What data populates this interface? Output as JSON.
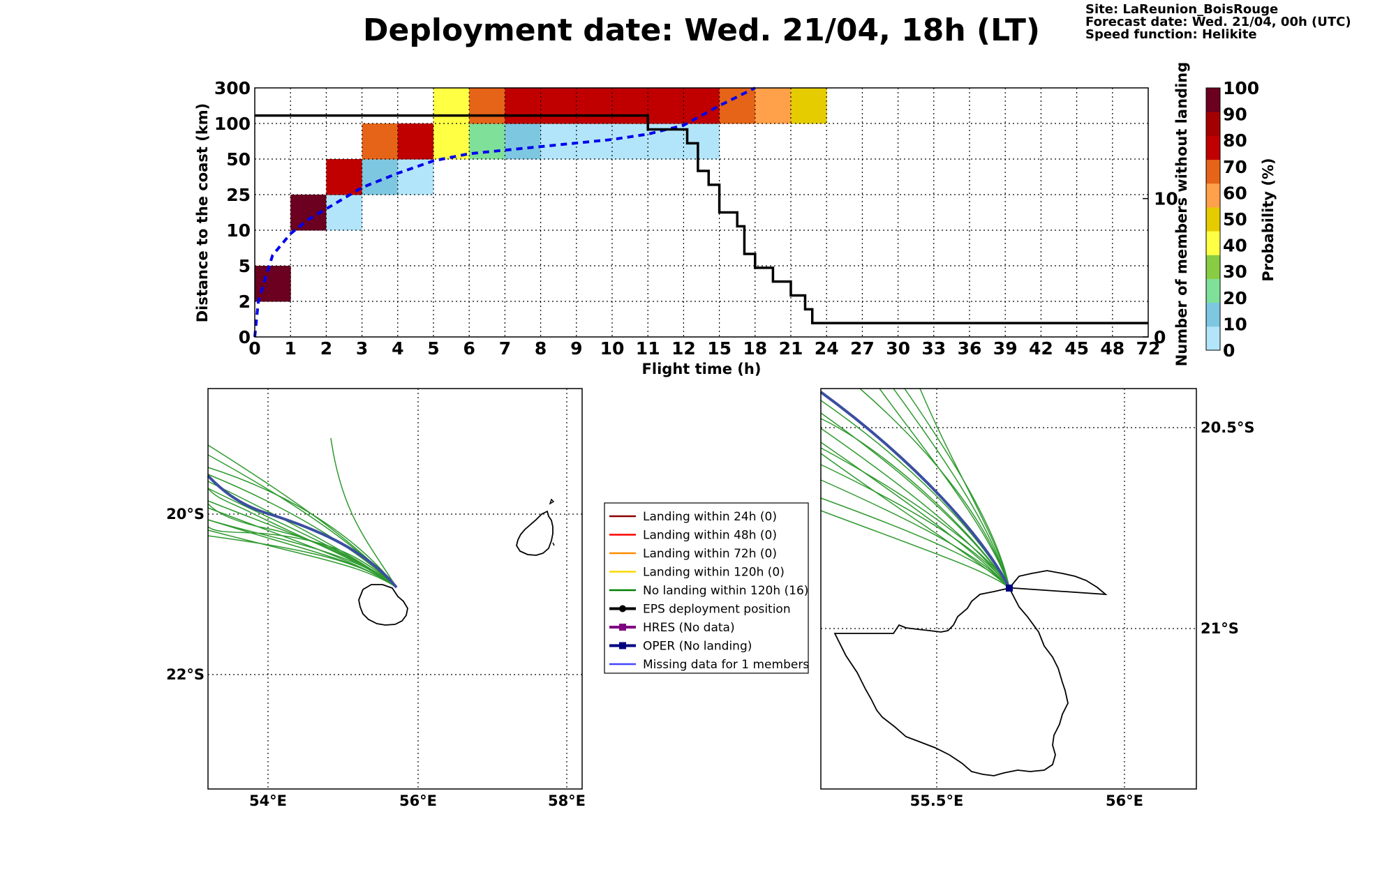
{
  "title": "Deployment date: Wed. 21/04, 18h (LT)",
  "meta": {
    "site": "Site: LaReunion_BoisRouge",
    "forecast": "Forecast date: Wed. 21/04, 00h (UTC)",
    "speed": "Speed function: Helikite"
  },
  "chart_data": [
    {
      "type": "heatmap",
      "xlabel": "Flight time (h)",
      "ylabel": "Distance to the coast (km)",
      "ylabel_right": "Number of members without landing",
      "colorbar_label": "Probability (%)",
      "x_ticks": [
        "0",
        "1",
        "2",
        "3",
        "4",
        "5",
        "6",
        "7",
        "8",
        "9",
        "10",
        "11",
        "12",
        "15",
        "18",
        "21",
        "24",
        "27",
        "30",
        "33",
        "36",
        "39",
        "42",
        "45",
        "48",
        "72"
      ],
      "y_ticks": [
        "0",
        "2",
        "5",
        "10",
        "25",
        "50",
        "100",
        "300"
      ],
      "right_ticks": [
        {
          "label": "0",
          "value": 0
        },
        {
          "label": "10",
          "value": 10
        }
      ],
      "right_ylim": [
        0,
        18
      ],
      "colorbar": {
        "ticks": [
          "0",
          "10",
          "20",
          "30",
          "40",
          "50",
          "60",
          "70",
          "80",
          "90",
          "100"
        ],
        "colors": [
          "#b3e5fa",
          "#7ec7e0",
          "#7fe09a",
          "#88cc44",
          "#ffff44",
          "#e5cc00",
          "#ffa04a",
          "#e56418",
          "#c00000",
          "#a50000",
          "#6b0020"
        ]
      },
      "cells": [
        {
          "x": 0,
          "y": 1,
          "p": 100,
          "color": "#6b0020"
        },
        {
          "x": 1,
          "y": 3,
          "p": 100,
          "color": "#6b0020"
        },
        {
          "x": 2,
          "y": 3,
          "p": 0,
          "color": "#b3e5fa"
        },
        {
          "x": 2,
          "y": 4,
          "p": 80,
          "color": "#c00000"
        },
        {
          "x": 3,
          "y": 4,
          "p": 10,
          "color": "#7ec7e0"
        },
        {
          "x": 4,
          "y": 4,
          "p": 0,
          "color": "#b3e5fa"
        },
        {
          "x": 3,
          "y": 5,
          "p": 70,
          "color": "#e56418"
        },
        {
          "x": 4,
          "y": 5,
          "p": 80,
          "color": "#c00000"
        },
        {
          "x": 5,
          "y": 5,
          "p": 40,
          "color": "#ffff44"
        },
        {
          "x": 6,
          "y": 5,
          "p": 20,
          "color": "#7fe09a"
        },
        {
          "x": 7,
          "y": 5,
          "p": 10,
          "color": "#7ec7e0"
        },
        {
          "x": 8,
          "y": 5,
          "p": 0,
          "color": "#b3e5fa"
        },
        {
          "x": 9,
          "y": 5,
          "p": 0,
          "color": "#b3e5fa"
        },
        {
          "x": 10,
          "y": 5,
          "p": 0,
          "color": "#b3e5fa"
        },
        {
          "x": 11,
          "y": 5,
          "p": 0,
          "color": "#b3e5fa"
        },
        {
          "x": 12,
          "y": 5,
          "p": 0,
          "color": "#b3e5fa"
        },
        {
          "x": 5,
          "y": 6,
          "p": 40,
          "color": "#ffff44"
        },
        {
          "x": 6,
          "y": 6,
          "p": 70,
          "color": "#e56418"
        },
        {
          "x": 7,
          "y": 6,
          "p": 80,
          "color": "#c00000"
        },
        {
          "x": 8,
          "y": 6,
          "p": 80,
          "color": "#c00000"
        },
        {
          "x": 9,
          "y": 6,
          "p": 80,
          "color": "#c00000"
        },
        {
          "x": 10,
          "y": 6,
          "p": 80,
          "color": "#c00000"
        },
        {
          "x": 11,
          "y": 6,
          "p": 80,
          "color": "#c00000"
        },
        {
          "x": 12,
          "y": 6,
          "p": 80,
          "color": "#c00000"
        },
        {
          "x": 13,
          "y": 6,
          "p": 70,
          "color": "#e56418"
        },
        {
          "x": 14,
          "y": 6,
          "p": 60,
          "color": "#ffa04a"
        },
        {
          "x": 15,
          "y": 6,
          "p": 50,
          "color": "#e5cc00"
        }
      ],
      "members_without_landing": {
        "x_bins": [
          0,
          11,
          11,
          12.1,
          12.1,
          12.4,
          12.4,
          12.7,
          12.7,
          13.0,
          13.0,
          13.5,
          13.5,
          13.7,
          13.7,
          14.0,
          14.0,
          14.5,
          14.5,
          15.0,
          15.0,
          15.4,
          15.4,
          15.6,
          15.6,
          25
        ],
        "values": [
          16,
          16,
          15,
          15,
          14,
          14,
          12,
          12,
          11,
          11,
          9,
          9,
          8,
          8,
          6,
          6,
          5,
          5,
          4,
          4,
          3,
          3,
          2,
          2,
          1,
          1
        ]
      },
      "median_distance": {
        "x_bins": [
          0,
          0.1,
          0.25,
          0.5,
          1,
          1.5,
          2,
          2.5,
          3,
          4,
          5,
          6,
          7,
          8,
          9,
          10,
          11,
          12,
          13,
          14
        ],
        "y_bins": [
          0,
          1,
          1.5,
          2.3,
          2.9,
          3.3,
          3.6,
          3.9,
          4.2,
          4.6,
          4.95,
          5.15,
          5.25,
          5.35,
          5.45,
          5.55,
          5.7,
          5.95,
          6.5,
          7
        ]
      }
    }
  ],
  "map_left": {
    "x_ticks": [
      "54°E",
      "56°E",
      "58°E"
    ],
    "y_ticks": [
      "20°S",
      "22°S"
    ]
  },
  "map_right": {
    "x_ticks": [
      "55.5°E",
      "56°E"
    ],
    "y_ticks": [
      "20.5°S",
      "21°S"
    ]
  },
  "legend": {
    "items": [
      {
        "label": "Landing within 24h (0)",
        "color": "#8b0000",
        "marker": "none"
      },
      {
        "label": "Landing within 48h (0)",
        "color": "#ff0000",
        "marker": "none"
      },
      {
        "label": "Landing within 72h (0)",
        "color": "#ff8c00",
        "marker": "none"
      },
      {
        "label": "Landing within 120h (0)",
        "color": "#ffd700",
        "marker": "none"
      },
      {
        "label": "No landing within 120h (16)",
        "color": "#008000",
        "marker": "none"
      },
      {
        "label": "EPS deployment position",
        "color": "#000000",
        "marker": "circle"
      },
      {
        "label": "HRES (No data)",
        "color": "#800080",
        "marker": "square"
      },
      {
        "label": "OPER (No landing)",
        "color": "#000080",
        "marker": "square"
      },
      {
        "label": "Missing data for 1 members",
        "color": "#4444ff",
        "marker": "none"
      }
    ]
  }
}
